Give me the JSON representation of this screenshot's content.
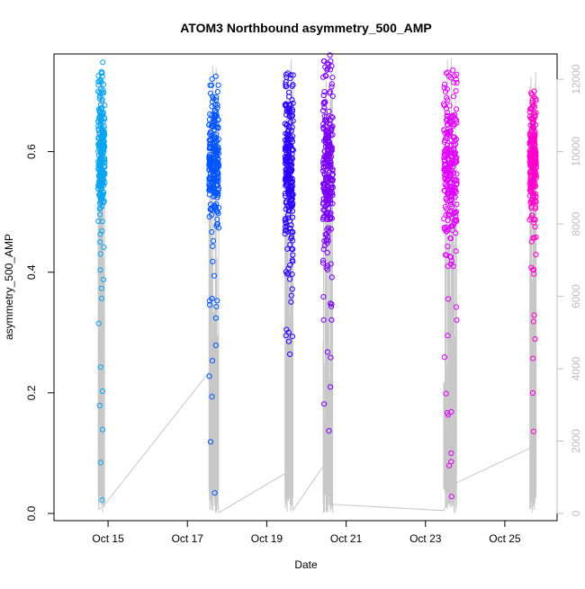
{
  "chart_data": {
    "type": "scatter",
    "title": "ATOM3 Northbound asymmetry_500_AMP",
    "xlabel": "Date",
    "ylabel": "asymmetry_500_AMP",
    "x_ticks": [
      "Oct 15",
      "Oct 17",
      "Oct 19",
      "Oct 21",
      "Oct 23",
      "Oct 25"
    ],
    "y_ticks": [
      "0.0",
      "0.2",
      "0.4",
      "0.6"
    ],
    "y2_ticks": [
      "0",
      "2000",
      "4000",
      "6000",
      "8000",
      "10000",
      "12000"
    ],
    "xlim": [
      "2023-10-14T00:00",
      "2023-10-26T00:00"
    ],
    "ylim": [
      0,
      0.75
    ],
    "y2lim": [
      0,
      12500
    ],
    "grid": false,
    "secondary_line_color": "#c8c8c8",
    "clusters": [
      {
        "x_start": "2023-10-14T18:00",
        "x_end": "2023-10-14T22:00",
        "color": "#0aa5f0",
        "core_min": 0.49,
        "core_max": 0.7,
        "y_min": 0.022,
        "y_max": 0.748
      },
      {
        "x_start": "2023-10-17T13:00",
        "x_end": "2023-10-17T19:00",
        "color": "#0055ff",
        "core_min": 0.49,
        "core_max": 0.68,
        "y_min": 0.034,
        "y_max": 0.725
      },
      {
        "x_start": "2023-10-19T11:00",
        "x_end": "2023-10-19T16:00",
        "color": "#2a00ff",
        "core_min": 0.44,
        "core_max": 0.7,
        "y_min": 0.264,
        "y_max": 0.727
      },
      {
        "x_start": "2023-10-20T10:00",
        "x_end": "2023-10-20T16:00",
        "color": "#7a00f5",
        "core_min": 0.42,
        "core_max": 0.72,
        "y_min": 0.137,
        "y_max": 0.76
      },
      {
        "x_start": "2023-10-23T11:00",
        "x_end": "2023-10-23T19:00",
        "color": "#e000ff",
        "core_min": 0.45,
        "core_max": 0.7,
        "y_min": 0.028,
        "y_max": 0.735
      },
      {
        "x_start": "2023-10-25T15:00",
        "x_end": "2023-10-25T19:00",
        "color": "#ff00cc",
        "core_min": 0.49,
        "core_max": 0.68,
        "y_min": 0.136,
        "y_max": 0.7
      }
    ],
    "secondary_series": {
      "name": "",
      "x": [
        "2023-10-14T18:00",
        "2023-10-14T22:00",
        "2023-10-17T13:00",
        "2023-10-17T19:00",
        "2023-10-19T11:00",
        "2023-10-19T16:00",
        "2023-10-20T10:00",
        "2023-10-20T16:00",
        "2023-10-23T11:00",
        "2023-10-23T19:00",
        "2023-10-25T15:00",
        "2023-10-25T19:00"
      ],
      "values": [
        100,
        250,
        3900,
        20,
        1100,
        100,
        1300,
        250,
        80,
        850,
        1800,
        1950
      ]
    }
  }
}
